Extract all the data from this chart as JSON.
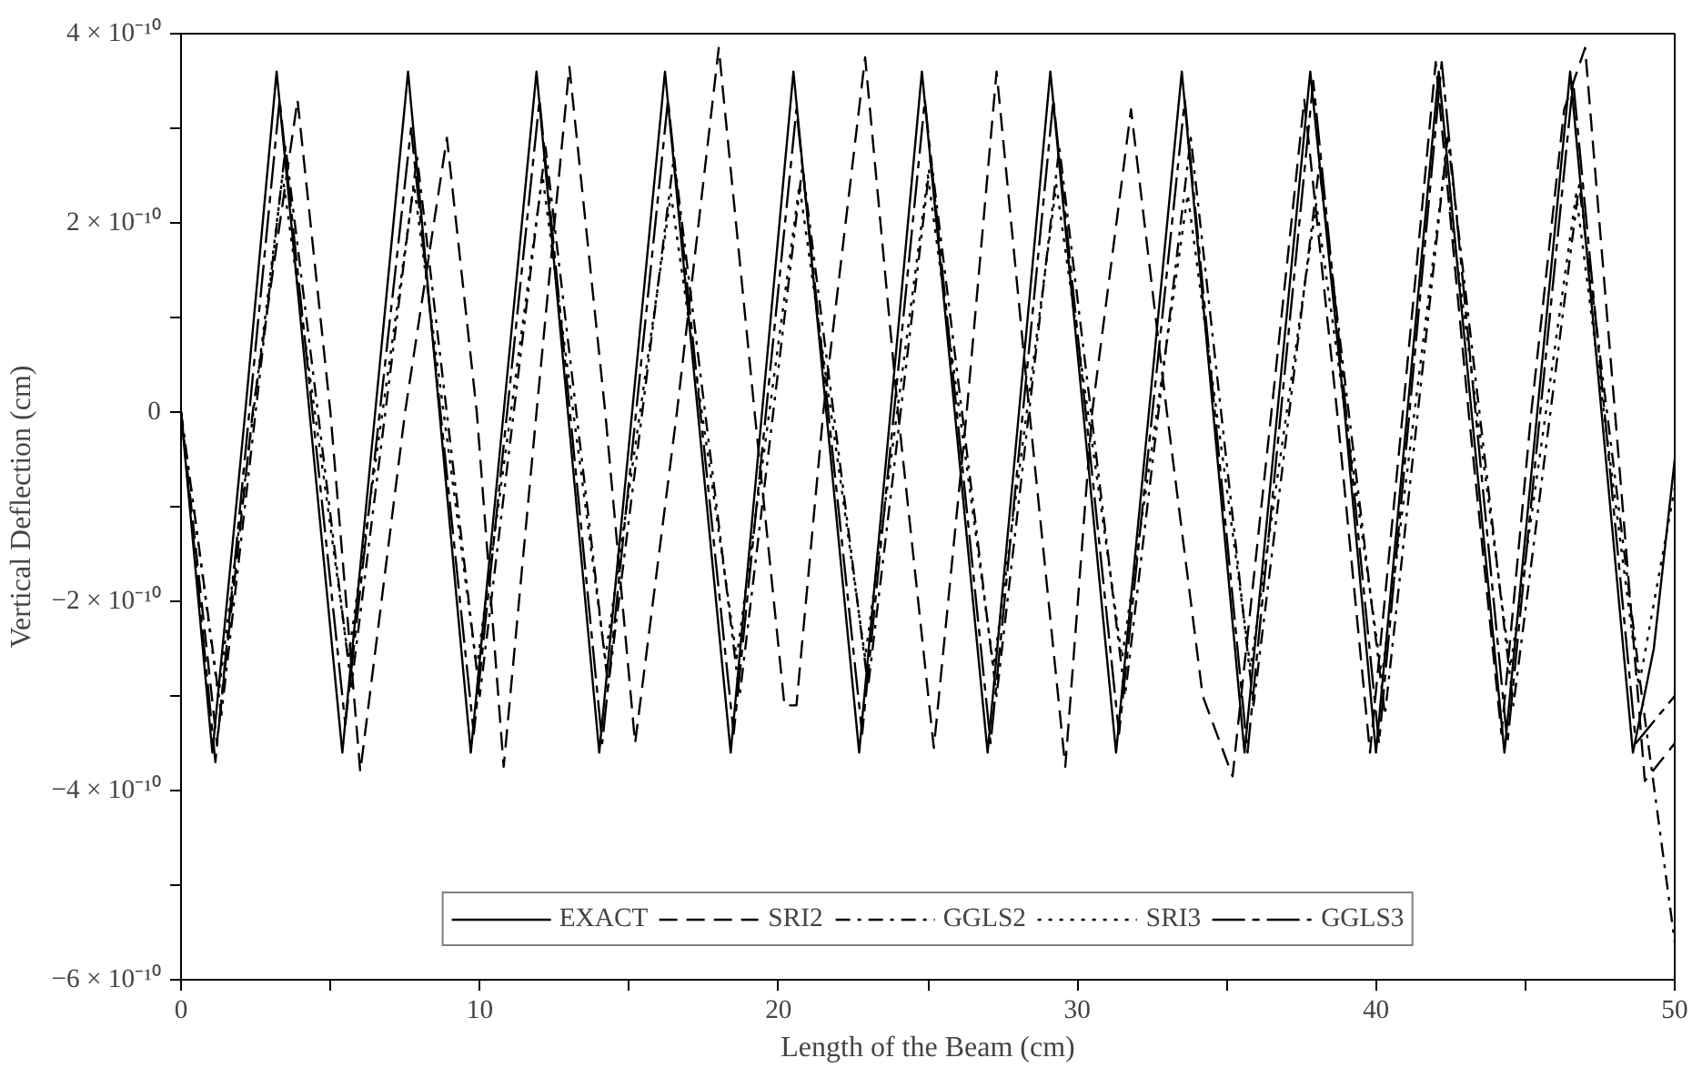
{
  "chart_data": {
    "type": "line",
    "xlabel": "Length of the Beam (cm)",
    "ylabel": "Vertical Deflection (cm)",
    "xlim": [
      0,
      50
    ],
    "ylim": [
      -6e-10,
      4e-10
    ],
    "xticks": [
      0,
      {
        "value": 5,
        "label": null
      },
      10,
      {
        "value": 15,
        "label": null
      },
      20,
      {
        "value": 25,
        "label": null
      },
      30,
      {
        "value": 35,
        "label": null
      },
      40,
      {
        "value": 45,
        "label": null
      },
      50
    ],
    "yticks": [
      {
        "value": -6e-10,
        "label": "−6 × 10⁻¹⁰"
      },
      {
        "value": -5e-10,
        "label": null
      },
      {
        "value": -4e-10,
        "label": "−4 × 10⁻¹⁰"
      },
      {
        "value": -3e-10,
        "label": null
      },
      {
        "value": -2e-10,
        "label": "−2 × 10⁻¹⁰"
      },
      {
        "value": -1e-10,
        "label": null
      },
      {
        "value": 0,
        "label": "0"
      },
      {
        "value": 1e-10,
        "label": null
      },
      {
        "value": 2e-10,
        "label": "2 × 10⁻¹⁰"
      },
      {
        "value": 3e-10,
        "label": null
      },
      {
        "value": 4e-10,
        "label": "4 × 10⁻¹⁰"
      }
    ],
    "grid": false,
    "legend": "bottom",
    "marker": "none",
    "series": [
      {
        "name": "EXACT",
        "color": "#000000",
        "line_style": "solid",
        "x": [
          0,
          1.05,
          2.15,
          3.2,
          4.3,
          5.4,
          6.5,
          7.6,
          8.65,
          9.7,
          10.8,
          11.9,
          12.95,
          14.0,
          15.1,
          16.2,
          17.3,
          18.4,
          19.45,
          20.5,
          21.6,
          22.7,
          23.75,
          24.8,
          25.9,
          27.0,
          28.05,
          29.1,
          30.2,
          31.3,
          32.4,
          33.5,
          34.55,
          35.6,
          36.7,
          37.8,
          38.95,
          40.0,
          41.05,
          42.1,
          43.2,
          44.3,
          45.4,
          46.5,
          47.55,
          48.6,
          49.3,
          50
        ],
        "values": [
          0,
          -3.6e-10,
          0,
          3.6e-10,
          0,
          -3.6e-10,
          0,
          3.6e-10,
          0,
          -3.6e-10,
          0,
          3.6e-10,
          0,
          -3.6e-10,
          0,
          3.6e-10,
          0,
          -3.6e-10,
          0,
          3.6e-10,
          0,
          -3.6e-10,
          0,
          3.6e-10,
          0,
          -3.6e-10,
          0,
          3.6e-10,
          0,
          -3.6e-10,
          0,
          3.6e-10,
          0,
          -3.6e-10,
          0,
          3.6e-10,
          0,
          -3.6e-10,
          0,
          3.6e-10,
          0,
          -3.6e-10,
          0,
          3.6e-10,
          0,
          -3.6e-10,
          -2.5e-10,
          -5e-11
        ]
      },
      {
        "name": "SRI2",
        "color": "#000000",
        "line_style": "dashed",
        "x": [
          0,
          1.2,
          2.4,
          3.9,
          5.0,
          6.0,
          7.5,
          8.9,
          9.9,
          10.8,
          11.9,
          13.0,
          14.2,
          15.2,
          16.6,
          18.0,
          19.2,
          20.2,
          20.6,
          21.5,
          22.9,
          24.0,
          25.2,
          26.3,
          27.3,
          28.4,
          29.6,
          30.5,
          31.8,
          33.0,
          34.2,
          35.2,
          36.5,
          37.6,
          38.7,
          39.8,
          40.9,
          42.0,
          43.1,
          44.2,
          45.2,
          46.3,
          47.0,
          48.0,
          49.0,
          50
        ],
        "values": [
          0,
          -3.5e-10,
          0,
          3.3e-10,
          0,
          -3.8e-10,
          0,
          2.9e-10,
          0,
          -3.75e-10,
          0,
          3.65e-10,
          0,
          -3.5e-10,
          0,
          3.85e-10,
          0,
          -3.1e-10,
          -3.1e-10,
          0,
          3.75e-10,
          0,
          -3.55e-10,
          0,
          3.6e-10,
          0,
          -3.75e-10,
          0,
          3.2e-10,
          0,
          -3e-10,
          -3.85e-10,
          0,
          3.3e-10,
          0,
          -3.6e-10,
          0,
          3.7e-10,
          0,
          -3.4e-10,
          0,
          3.2e-10,
          3.85e-10,
          0,
          -3.9e-10,
          -3.5e-10
        ]
      },
      {
        "name": "GGLS2",
        "color": "#000000",
        "line_style": "dashdot",
        "x": [
          0,
          1.35,
          3.5,
          5.7,
          7.9,
          10.0,
          12.2,
          14.3,
          16.5,
          18.7,
          20.8,
          23.0,
          25.1,
          27.3,
          29.4,
          31.6,
          33.8,
          35.9,
          38.1,
          40.3,
          42.4,
          44.6,
          46.8,
          48.9,
          50
        ],
        "values": [
          0,
          -3.2e-10,
          2.8e-10,
          -2.9e-10,
          2.7e-10,
          -3e-10,
          2.8e-10,
          -2.9e-10,
          2.7e-10,
          -3e-10,
          2.6e-10,
          -2.9e-10,
          2.7e-10,
          -3e-10,
          2.8e-10,
          -3e-10,
          2.9e-10,
          -3.1e-10,
          2.6e-10,
          -3.2e-10,
          2.9e-10,
          -3.1e-10,
          2.4e-10,
          -3e-10,
          -5.6e-10
        ]
      },
      {
        "name": "SRI3",
        "color": "#000000",
        "line_style": "dotted",
        "x": [
          0,
          1.25,
          3.4,
          5.6,
          7.8,
          9.9,
          12.1,
          14.2,
          16.4,
          18.6,
          20.7,
          22.9,
          25.0,
          27.2,
          29.3,
          31.5,
          33.7,
          35.8,
          38.0,
          40.2,
          42.3,
          44.5,
          46.7,
          48.8,
          50
        ],
        "values": [
          0,
          -3e-10,
          2.5e-10,
          -2.6e-10,
          2.4e-10,
          -2.7e-10,
          2.5e-10,
          -2.6e-10,
          2.3e-10,
          -2.6e-10,
          2.4e-10,
          -2.6e-10,
          2.5e-10,
          -2.7e-10,
          2.4e-10,
          -2.6e-10,
          2.3e-10,
          -2.7e-10,
          2.2e-10,
          -2.8e-10,
          2.6e-10,
          -2.7e-10,
          2.3e-10,
          -2.9e-10,
          -8e-11
        ]
      },
      {
        "name": "GGLS3",
        "color": "#000000",
        "line_style": "longdash",
        "x": [
          0,
          1.15,
          3.3,
          5.5,
          7.7,
          9.8,
          12.0,
          14.1,
          16.3,
          18.5,
          20.6,
          22.8,
          24.9,
          27.1,
          29.2,
          31.4,
          33.6,
          35.7,
          37.9,
          40.1,
          42.2,
          44.4,
          46.6,
          48.7,
          50
        ],
        "values": [
          0,
          -3.7e-10,
          3.3e-10,
          -3.3e-10,
          3e-10,
          -3.4e-10,
          3.3e-10,
          -3.5e-10,
          3.3e-10,
          -3.4e-10,
          3.2e-10,
          -3.4e-10,
          3.3e-10,
          -3.5e-10,
          3.3e-10,
          -3.4e-10,
          3.3e-10,
          -3.6e-10,
          3.5e-10,
          -3.5e-10,
          3.7e-10,
          -3.5e-10,
          3.5e-10,
          -3.5e-10,
          -3e-10
        ]
      }
    ]
  }
}
